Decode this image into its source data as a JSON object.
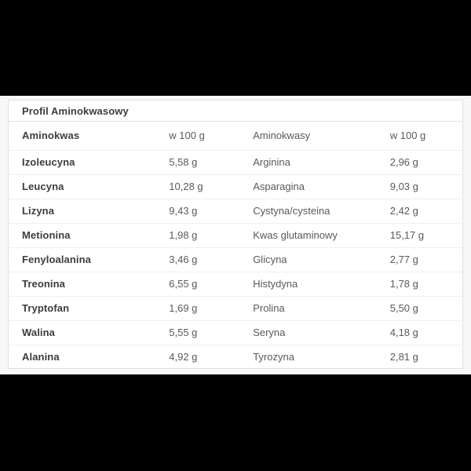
{
  "card": {
    "title": "Profil Aminokwasowy"
  },
  "table": {
    "headers": [
      "Aminokwas",
      "w 100 g",
      "Aminokwasy",
      "w 100 g"
    ],
    "rows": [
      [
        "Izoleucyna",
        "5,58 g",
        "Arginina",
        "2,96 g"
      ],
      [
        "Leucyna",
        "10,28 g",
        "Asparagina",
        "9,03 g"
      ],
      [
        "Lizyna",
        "9,43 g",
        "Cystyna/cysteina",
        "2,42 g"
      ],
      [
        "Metionina",
        "1,98 g",
        "Kwas glutaminowy",
        "15,17 g"
      ],
      [
        "Fenyloalanina",
        "3,46 g",
        "Glicyna",
        "2,77 g"
      ],
      [
        "Treonina",
        "6,55 g",
        "Histydyna",
        "1,78 g"
      ],
      [
        "Tryptofan",
        "1,69 g",
        "Prolina",
        "5,50 g"
      ],
      [
        "Walina",
        "5,55 g",
        "Seryna",
        "4,18 g"
      ],
      [
        "Alanina",
        "4,92 g",
        "Tyrozyna",
        "2,81 g"
      ]
    ]
  },
  "colors": {
    "letterbox": "#000000",
    "page_background": "#f7f7f7",
    "card_background": "#ffffff",
    "card_border": "#e0e0e0",
    "row_divider": "#f0f0f0",
    "text_bold": "#3d3d3f",
    "text_gray": "#5a5a5c"
  }
}
